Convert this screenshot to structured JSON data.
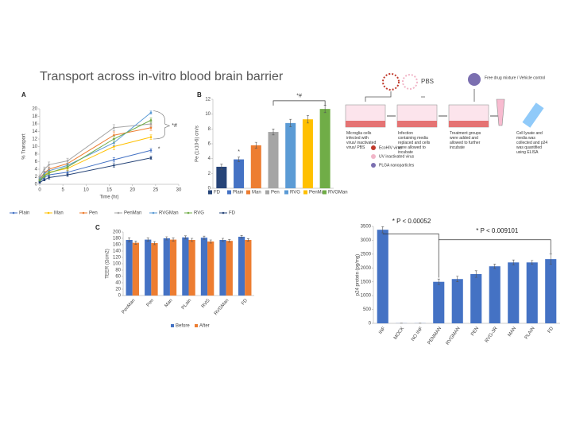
{
  "header": {
    "title": "Transport across in-vitro blood brain barrier"
  },
  "diagram": {
    "pbs": "PBS",
    "treatment": "Free drug mixture / Vehicle control",
    "steps": [
      "Microglia cells infected with virus/ inactivated virus/ PBS",
      "Infection containing media replaced and cells were allowed to incubate",
      "Treatment groups were added and allowed to further incubate",
      "Cell lysate and media was collected and p24 was quantified using ELISA"
    ],
    "legend": [
      "EcoHIV virus",
      "UV inactivated virus",
      "PLGA nanoparticles"
    ]
  },
  "chart_data": [
    {
      "type": "line",
      "panel_label": "A",
      "xlabel": "Time (hr)",
      "ylabel": "% Transport",
      "x": [
        0,
        1,
        2,
        6,
        16,
        24
      ],
      "xlim": [
        0,
        30
      ],
      "xticks": [
        0,
        5,
        10,
        15,
        20,
        25,
        30
      ],
      "ylim": [
        0,
        20
      ],
      "yticks": [
        0,
        2,
        4,
        6,
        8,
        10,
        12,
        14,
        16,
        18,
        20
      ],
      "legend": "bottom",
      "annotations": [
        "*#",
        "*"
      ],
      "series": [
        {
          "name": "Plain",
          "color": "#4472c4",
          "values": [
            0.8,
            1.8,
            2.5,
            3.2,
            6.5,
            9
          ],
          "errors": [
            0.3,
            0.4,
            0.5,
            0.5,
            0.6,
            0.5
          ]
        },
        {
          "name": "Man",
          "color": "#ffc000",
          "values": [
            1.2,
            2.5,
            3.2,
            4.2,
            10,
            12.5
          ],
          "errors": [
            0.3,
            0.4,
            0.5,
            0.6,
            0.8,
            0.6
          ]
        },
        {
          "name": "Pen",
          "color": "#ed7d31",
          "values": [
            1.5,
            3,
            4,
            5.5,
            13,
            15
          ],
          "errors": [
            0.4,
            0.5,
            0.6,
            0.7,
            0.9,
            0.7
          ]
        },
        {
          "name": "PenMan",
          "color": "#a5a5a5",
          "values": [
            2,
            4,
            5.2,
            6.2,
            15,
            16
          ],
          "errors": [
            0.5,
            0.6,
            0.7,
            0.7,
            0.8,
            0.7
          ]
        },
        {
          "name": "RVGMan",
          "color": "#5b9bd5",
          "values": [
            1.3,
            2.8,
            3.6,
            5,
            11,
            19
          ],
          "errors": [
            0.4,
            0.5,
            0.6,
            0.6,
            0.8,
            0.4
          ]
        },
        {
          "name": "RVG",
          "color": "#70ad47",
          "values": [
            1,
            2.2,
            3,
            4.6,
            12,
            17
          ],
          "errors": [
            0.3,
            0.4,
            0.5,
            0.6,
            0.8,
            0.6
          ]
        },
        {
          "name": "FD",
          "color": "#264478",
          "values": [
            0.5,
            1.2,
            1.8,
            2.5,
            5,
            7
          ],
          "errors": [
            0.2,
            0.3,
            0.4,
            0.4,
            0.5,
            0.4
          ]
        }
      ]
    },
    {
      "type": "bar",
      "panel_label": "B",
      "ylabel": "Pe (1x10-6) cm/s",
      "categories": [
        "FD",
        "Plain",
        "Man",
        "Pen",
        "RVG",
        "PenMan",
        "RVGMan"
      ],
      "values": [
        2.9,
        3.9,
        5.8,
        7.6,
        8.8,
        9.3,
        10.7
      ],
      "errors": [
        0.35,
        0.3,
        0.4,
        0.4,
        0.5,
        0.5,
        0.5
      ],
      "colors": [
        "#264478",
        "#4472c4",
        "#ed7d31",
        "#a5a5a5",
        "#5b9bd5",
        "#ffc000",
        "#70ad47"
      ],
      "ylim": [
        0,
        12
      ],
      "yticks": [
        0,
        2,
        4,
        6,
        8,
        10,
        12
      ],
      "legend": "bottom",
      "x_tick_labels": false,
      "annotations": [
        "*",
        "*#"
      ]
    },
    {
      "type": "bar",
      "panel_label": "C",
      "ylabel": "TEER (Ωcm2)",
      "categories": [
        "PenMan",
        "Pen",
        "Man",
        "PLain",
        "RVG",
        "RVGMan",
        "FD"
      ],
      "ylim": [
        0,
        200
      ],
      "yticks": [
        0,
        20,
        40,
        60,
        80,
        100,
        120,
        140,
        160,
        180,
        200
      ],
      "legend": "bottom",
      "x_label_rotation": -50,
      "series": [
        {
          "name": "Before",
          "color": "#4472c4",
          "values": [
            175,
            176,
            180,
            183,
            182,
            175,
            185
          ],
          "errors": [
            6,
            5,
            5,
            5,
            5,
            5,
            4
          ]
        },
        {
          "name": "After",
          "color": "#ed7d31",
          "values": [
            166,
            165,
            176,
            175,
            170,
            172,
            175
          ],
          "errors": [
            5,
            5,
            5,
            5,
            5,
            4,
            4
          ]
        }
      ]
    },
    {
      "type": "bar",
      "ylabel": "p24 protein (pg/mg)",
      "categories": [
        "INF",
        "MOCK",
        "NO INF",
        "PENMAN",
        "RVGMAN",
        "PEN",
        "RVG-3R",
        "MAN",
        "PLAIN",
        "FD"
      ],
      "values": [
        3380,
        5,
        5,
        1500,
        1600,
        1780,
        2060,
        2200,
        2200,
        2320
      ],
      "errors": [
        110,
        0,
        0,
        100,
        100,
        120,
        80,
        90,
        70,
        180
      ],
      "color": "#4472c4",
      "ylim": [
        0,
        3500
      ],
      "yticks": [
        0,
        500,
        1000,
        1500,
        2000,
        2500,
        3000,
        3500
      ],
      "x_label_rotation": -55,
      "annotations": [
        "* P < 0.00052",
        "* P < 0.009101"
      ]
    }
  ]
}
